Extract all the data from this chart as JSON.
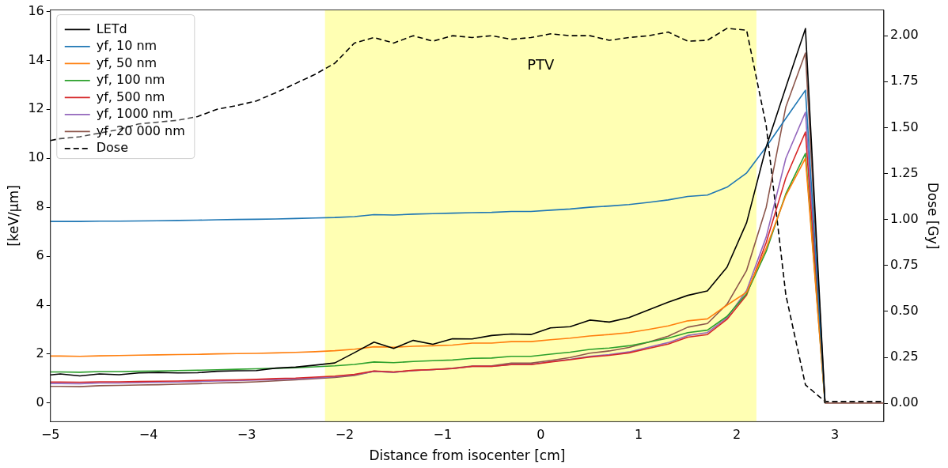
{
  "chart_data": {
    "type": "line",
    "xlabel": "Distance from isocenter [cm]",
    "ylabel": "[keV/µm]",
    "y2label": "Dose [Gy]",
    "x": [
      -5,
      -4.9,
      -4.7,
      -4.5,
      -4.3,
      -4.1,
      -3.9,
      -3.7,
      -3.5,
      -3.3,
      -3.1,
      -2.9,
      -2.7,
      -2.5,
      -2.3,
      -2.1,
      -1.9,
      -1.7,
      -1.5,
      -1.3,
      -1.1,
      -0.9,
      -0.7,
      -0.5,
      -0.3,
      -0.1,
      0.1,
      0.3,
      0.5,
      0.7,
      0.9,
      1.1,
      1.3,
      1.5,
      1.7,
      1.9,
      2.1,
      2.3,
      2.5,
      2.7,
      2.9,
      3.1,
      3.3,
      3.5
    ],
    "series": [
      {
        "name": "LETd",
        "color": "#000000",
        "values": [
          1.15,
          1.19,
          1.11,
          1.19,
          1.16,
          1.23,
          1.25,
          1.23,
          1.24,
          1.3,
          1.32,
          1.33,
          1.43,
          1.47,
          1.55,
          1.64,
          2.06,
          2.49,
          2.23,
          2.56,
          2.4,
          2.63,
          2.62,
          2.76,
          2.82,
          2.8,
          3.07,
          3.12,
          3.39,
          3.31,
          3.49,
          3.81,
          4.12,
          4.4,
          4.58,
          5.55,
          7.37,
          10.47,
          12.9,
          15.3,
          0,
          null,
          null,
          null
        ]
      },
      {
        "name": "yf, 10 nm",
        "color": "#1f77b4",
        "values": [
          7.42,
          7.42,
          7.42,
          7.43,
          7.43,
          7.44,
          7.45,
          7.46,
          7.47,
          7.49,
          7.5,
          7.51,
          7.52,
          7.54,
          7.56,
          7.58,
          7.62,
          7.7,
          7.68,
          7.72,
          7.74,
          7.76,
          7.78,
          7.79,
          7.83,
          7.83,
          7.88,
          7.93,
          8.0,
          8.05,
          8.11,
          8.2,
          8.3,
          8.44,
          8.5,
          8.82,
          9.4,
          10.47,
          11.63,
          12.78,
          0,
          null,
          null,
          null
        ]
      },
      {
        "name": "yf, 50 nm",
        "color": "#ff7f0e",
        "values": [
          1.92,
          1.92,
          1.91,
          1.93,
          1.94,
          1.96,
          1.97,
          1.98,
          1.99,
          2.01,
          2.02,
          2.03,
          2.05,
          2.07,
          2.1,
          2.14,
          2.2,
          2.3,
          2.28,
          2.32,
          2.34,
          2.37,
          2.45,
          2.45,
          2.51,
          2.51,
          2.59,
          2.65,
          2.74,
          2.8,
          2.88,
          3.01,
          3.15,
          3.36,
          3.44,
          4.0,
          4.53,
          6.33,
          8.48,
          10.0,
          0,
          null,
          null,
          null
        ]
      },
      {
        "name": "yf, 100 nm",
        "color": "#2ca02c",
        "values": [
          1.27,
          1.27,
          1.26,
          1.29,
          1.29,
          1.3,
          1.31,
          1.33,
          1.34,
          1.36,
          1.38,
          1.4,
          1.42,
          1.44,
          1.48,
          1.52,
          1.58,
          1.68,
          1.65,
          1.7,
          1.73,
          1.76,
          1.83,
          1.84,
          1.91,
          1.91,
          2.0,
          2.08,
          2.19,
          2.25,
          2.34,
          2.49,
          2.65,
          2.88,
          2.98,
          3.54,
          4.47,
          6.2,
          8.55,
          10.2,
          0,
          null,
          null,
          null
        ]
      },
      {
        "name": "yf, 500 nm",
        "color": "#d62728",
        "values": [
          0.86,
          0.86,
          0.85,
          0.87,
          0.87,
          0.88,
          0.89,
          0.9,
          0.92,
          0.94,
          0.95,
          0.97,
          1.0,
          1.02,
          1.06,
          1.1,
          1.17,
          1.31,
          1.27,
          1.34,
          1.37,
          1.41,
          1.5,
          1.5,
          1.57,
          1.57,
          1.68,
          1.77,
          1.88,
          1.95,
          2.05,
          2.23,
          2.41,
          2.69,
          2.8,
          3.42,
          4.41,
          6.56,
          9.2,
          11.07,
          0,
          null,
          null,
          null
        ]
      },
      {
        "name": "yf, 1000 nm",
        "color": "#9467bd",
        "values": [
          0.8,
          0.8,
          0.79,
          0.82,
          0.82,
          0.84,
          0.85,
          0.86,
          0.88,
          0.9,
          0.92,
          0.94,
          0.96,
          0.99,
          1.03,
          1.08,
          1.15,
          1.3,
          1.26,
          1.33,
          1.37,
          1.41,
          1.5,
          1.5,
          1.58,
          1.58,
          1.69,
          1.79,
          1.91,
          1.98,
          2.09,
          2.28,
          2.47,
          2.76,
          2.88,
          3.48,
          4.6,
          6.79,
          10.0,
          11.88,
          0,
          null,
          null,
          null
        ]
      },
      {
        "name": "yf, 20 000 nm",
        "color": "#8c564b",
        "values": [
          0.68,
          0.68,
          0.67,
          0.71,
          0.72,
          0.74,
          0.75,
          0.77,
          0.79,
          0.82,
          0.84,
          0.87,
          0.91,
          0.95,
          1.0,
          1.05,
          1.13,
          1.3,
          1.26,
          1.33,
          1.37,
          1.42,
          1.51,
          1.52,
          1.63,
          1.63,
          1.74,
          1.86,
          2.04,
          2.13,
          2.27,
          2.49,
          2.73,
          3.1,
          3.25,
          4.04,
          5.42,
          8.0,
          12.1,
          14.3,
          0,
          0,
          0,
          0
        ]
      },
      {
        "name": "Dose",
        "color": "#000000",
        "axis": "y2",
        "line_style": "dashed",
        "values": [
          1.43,
          1.44,
          1.45,
          1.47,
          1.49,
          1.52,
          1.53,
          1.54,
          1.56,
          1.6,
          1.62,
          1.645,
          1.69,
          1.74,
          1.79,
          1.85,
          1.96,
          1.99,
          1.96,
          2.0,
          1.97,
          2.0,
          1.99,
          2.0,
          1.98,
          1.99,
          2.01,
          2.0,
          2.0,
          1.975,
          1.99,
          2.0,
          2.02,
          1.97,
          1.975,
          2.04,
          2.03,
          1.51,
          0.59,
          0.1,
          0.01,
          0.01,
          0.01,
          0.01
        ]
      }
    ],
    "xlim": [
      -5,
      3.5
    ],
    "xticks": [
      {
        "value": -5,
        "label": "−5"
      },
      {
        "value": -4,
        "label": "−4"
      },
      {
        "value": -3,
        "label": "−3"
      },
      {
        "value": -2,
        "label": "−2"
      },
      {
        "value": -1,
        "label": "−1"
      },
      0,
      1,
      2,
      3
    ],
    "ylim": [
      -0.76,
      16.06
    ],
    "yticks": [
      0,
      2,
      4,
      6,
      8,
      10,
      12,
      14,
      16
    ],
    "y2lim": [
      -0.1,
      2.14
    ],
    "y2ticks": [
      {
        "value": 0,
        "label": "0.00"
      },
      0.25,
      {
        "value": 0.5,
        "label": "0.50"
      },
      0.75,
      {
        "value": 1,
        "label": "1.00"
      },
      1.25,
      {
        "value": 1.5,
        "label": "1.50"
      },
      1.75,
      {
        "value": 2,
        "label": "2.00"
      }
    ],
    "bands": [
      {
        "axis": "x",
        "from": -2.2,
        "to": 2.2,
        "label": "PTV",
        "color": "#ffffb3"
      }
    ],
    "legend": "top left",
    "grid": false,
    "line_style": "solid",
    "marker": "none"
  }
}
